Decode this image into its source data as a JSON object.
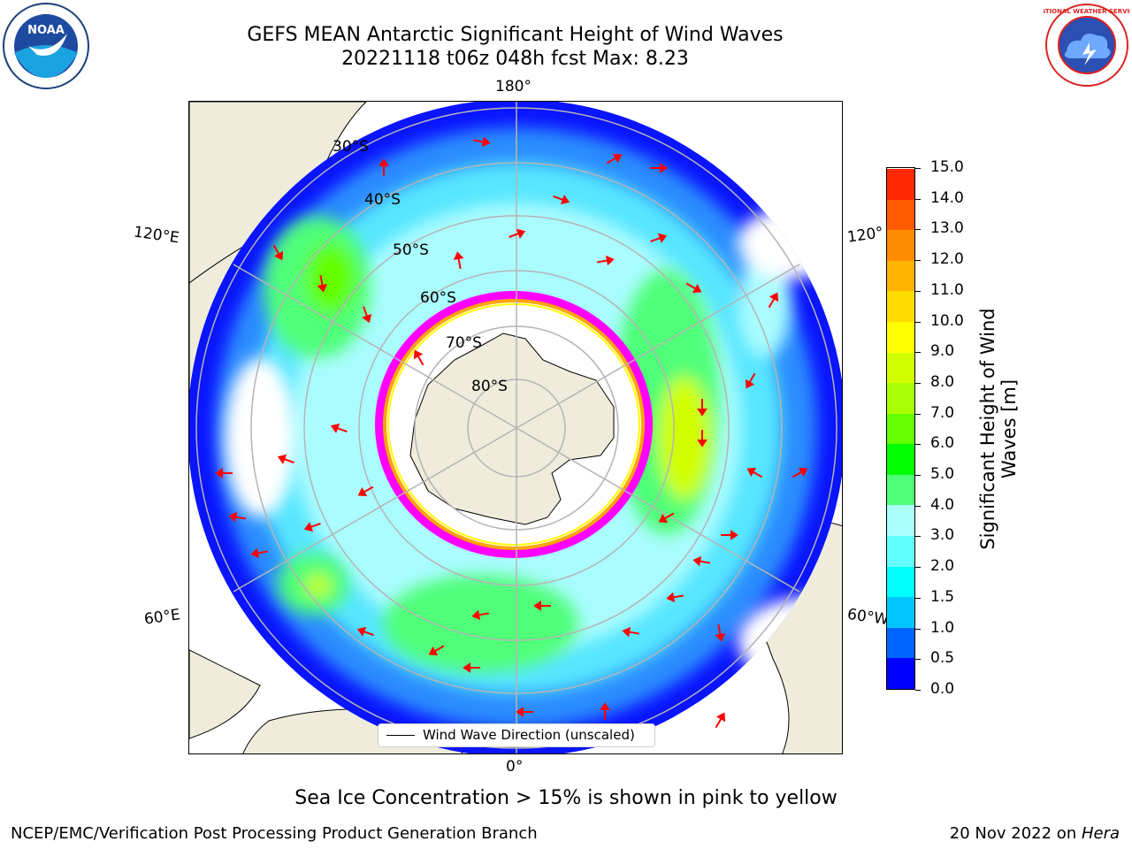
{
  "header": {
    "title": "GEFS MEAN Antarctic Significant Height of Wind Waves",
    "subtitle": "20221118 t06z 048h fcst   Max: 8.23"
  },
  "logos": {
    "left": {
      "text": "NOAA",
      "icon": "noaa-logo"
    },
    "right": {
      "text": "NATIONAL WEATHER SERVICE",
      "icon": "nws-logo"
    }
  },
  "map": {
    "projection": "south-polar-stereographic",
    "lon_labels": {
      "top": "180°",
      "bottom": "0°",
      "upper_left": "120°E",
      "upper_right": "120°",
      "lower_left": "60°E",
      "lower_right": "60°W"
    },
    "lat_labels": [
      "30°S",
      "40°S",
      "50°S",
      "60°S",
      "70°S",
      "80°S"
    ],
    "legend_label": "Wind Wave Direction (unscaled)",
    "arrow_color": "#ff0000",
    "land_color": "#efecdc",
    "sea_ice_colors": [
      "#ff00ff",
      "#ffa500",
      "#ffff00"
    ],
    "max_value": 8.23
  },
  "colorbar": {
    "label_line1": "Significant Height of Wind",
    "label_line2": "Waves [m]",
    "ticks": [
      "0.0",
      "0.5",
      "1.0",
      "1.5",
      "2.0",
      "3.0",
      "4.0",
      "5.0",
      "6.0",
      "7.0",
      "8.0",
      "9.0",
      "10.0",
      "11.0",
      "12.0",
      "13.0",
      "14.0",
      "15.0"
    ],
    "colors": [
      "#0000ff",
      "#0064ff",
      "#00c8ff",
      "#00ffff",
      "#64ffff",
      "#aaffff",
      "#50ff78",
      "#00ff00",
      "#64ff00",
      "#aaff00",
      "#d2ff00",
      "#ffff00",
      "#ffdc00",
      "#ffb400",
      "#ff8c00",
      "#ff5a00",
      "#ff2800"
    ]
  },
  "footer": {
    "note": "Sea Ice Concentration > 15% is shown in pink to yellow",
    "left": "NCEP/EMC/Verification Post Processing Product Generation Branch",
    "right_date": "20 Nov 2022 on ",
    "right_host": "Hera"
  }
}
